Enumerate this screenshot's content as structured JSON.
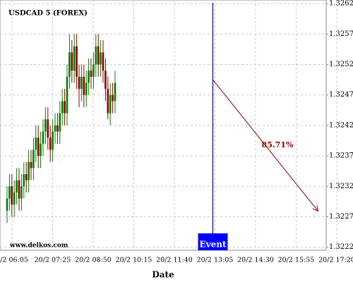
{
  "chart_data": {
    "type": "candlestick",
    "title": "USDCAD 5 (FOREX)",
    "watermark": "www.delkos.com",
    "x_label": "Date",
    "x_labels": [
      "0/2 06:05",
      "20/2 07:25",
      "20/2 08:50",
      "20/2 10:15",
      "20/2 11:40",
      "20/2 13:05",
      "20/2 14:30",
      "20/2 15:55",
      "20/2 17:20"
    ],
    "ylim": [
      1.32215,
      1.32626
    ],
    "yticks": [
      1.3222,
      1.3227,
      1.3232,
      1.3237,
      1.3242,
      1.3247,
      1.3252,
      1.3257,
      1.3262
    ],
    "grid": true,
    "up_color": "#008000",
    "down_color": "#8b0000",
    "candles": {
      "open": [
        1.3228,
        1.323,
        1.3232,
        1.3229,
        1.3231,
        1.3233,
        1.323,
        1.3232,
        1.3234,
        1.3233,
        1.3236,
        1.3235,
        1.3238,
        1.324,
        1.3237,
        1.3239,
        1.3241,
        1.3243,
        1.324,
        1.3238,
        1.3241,
        1.3242,
        1.3241,
        1.3244,
        1.3246,
        1.3244,
        1.325,
        1.3254,
        1.3251,
        1.3255,
        1.325,
        1.3248,
        1.325,
        1.3247,
        1.3249,
        1.3251,
        1.325,
        1.3252,
        1.3255,
        1.3252,
        1.3254,
        1.3251,
        1.3248,
        1.3244,
        1.3247,
        1.3246
      ],
      "high": [
        1.3232,
        1.3234,
        1.3234,
        1.3233,
        1.3235,
        1.3235,
        1.3234,
        1.3236,
        1.3236,
        1.3238,
        1.3238,
        1.324,
        1.3242,
        1.3242,
        1.3241,
        1.3243,
        1.3245,
        1.3245,
        1.3242,
        1.3243,
        1.3244,
        1.3244,
        1.3246,
        1.3248,
        1.3248,
        1.3252,
        1.3257,
        1.3256,
        1.3257,
        1.3257,
        1.3252,
        1.3252,
        1.3252,
        1.3251,
        1.3253,
        1.3253,
        1.3254,
        1.3257,
        1.3257,
        1.3256,
        1.3256,
        1.3253,
        1.325,
        1.3249,
        1.3249,
        1.3251
      ],
      "low": [
        1.3226,
        1.3228,
        1.3227,
        1.3227,
        1.3229,
        1.3228,
        1.3228,
        1.323,
        1.3231,
        1.3231,
        1.3233,
        1.3233,
        1.3236,
        1.3235,
        1.3235,
        1.3237,
        1.3239,
        1.3238,
        1.3236,
        1.3236,
        1.3239,
        1.3239,
        1.3239,
        1.3242,
        1.3242,
        1.3242,
        1.3248,
        1.3249,
        1.3249,
        1.3248,
        1.3245,
        1.3246,
        1.3245,
        1.3245,
        1.3247,
        1.3248,
        1.3248,
        1.325,
        1.325,
        1.325,
        1.3249,
        1.3246,
        1.3243,
        1.3242,
        1.3244,
        1.3244
      ],
      "close": [
        1.323,
        1.3232,
        1.3229,
        1.3231,
        1.3233,
        1.323,
        1.3232,
        1.3234,
        1.3233,
        1.3236,
        1.3235,
        1.3238,
        1.324,
        1.3237,
        1.3239,
        1.3241,
        1.3243,
        1.324,
        1.3238,
        1.3241,
        1.3242,
        1.3241,
        1.3244,
        1.3246,
        1.3244,
        1.325,
        1.3254,
        1.3251,
        1.3255,
        1.325,
        1.3248,
        1.325,
        1.3247,
        1.3249,
        1.3251,
        1.325,
        1.3252,
        1.3255,
        1.3252,
        1.3254,
        1.3251,
        1.3248,
        1.3244,
        1.3247,
        1.3246,
        1.3249
      ]
    },
    "event": {
      "label": "Event",
      "at": "20/2 13:05",
      "color": "#000080",
      "box_color": "#0000ff"
    },
    "forecast": {
      "label": "85.71%",
      "start": 1.32495,
      "end": 1.3228,
      "color": "#8b0000"
    }
  }
}
